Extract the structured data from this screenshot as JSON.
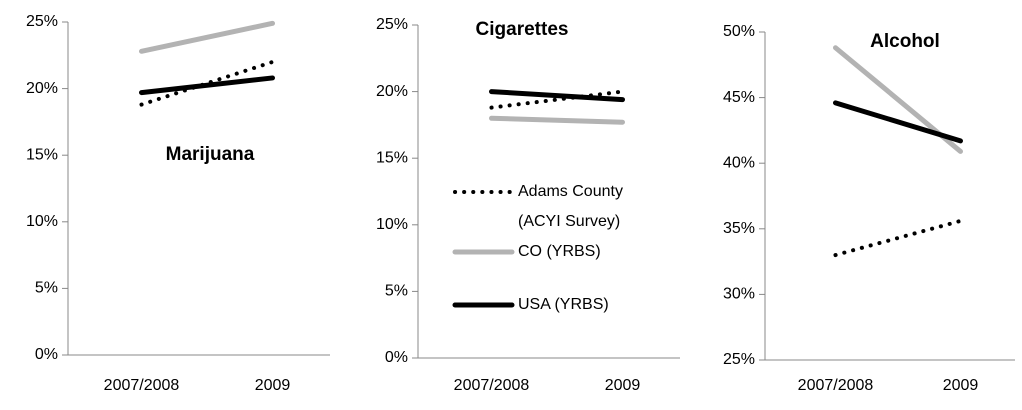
{
  "chart_data": [
    {
      "type": "line",
      "title": "Marijuana",
      "categories": [
        "2007/2008",
        "2009"
      ],
      "ylim": [
        0,
        25
      ],
      "yticks": [
        {
          "value": 0,
          "label": "0%"
        },
        {
          "value": 5,
          "label": "5%"
        },
        {
          "value": 10,
          "label": "10%"
        },
        {
          "value": 15,
          "label": "15%"
        },
        {
          "value": 20,
          "label": "20%"
        },
        {
          "value": 25,
          "label": "25%"
        }
      ],
      "series": [
        {
          "color": "#b3b3b3",
          "dash": "solid",
          "values": [
            22.8,
            24.9
          ]
        },
        {
          "color": "#000000",
          "dash": "solid",
          "values": [
            19.7,
            20.8
          ]
        },
        {
          "color": "#000000",
          "dash": "dotted",
          "values": [
            18.8,
            22.0
          ]
        }
      ]
    },
    {
      "type": "line",
      "title": "Cigarettes",
      "categories": [
        "2007/2008",
        "2009"
      ],
      "ylim": [
        0,
        25
      ],
      "yticks": [
        {
          "value": 0,
          "label": "0%"
        },
        {
          "value": 5,
          "label": "5%"
        },
        {
          "value": 10,
          "label": "10%"
        },
        {
          "value": 15,
          "label": "15%"
        },
        {
          "value": 20,
          "label": "20%"
        },
        {
          "value": 25,
          "label": "25%"
        }
      ],
      "legend": true,
      "series": [
        {
          "name": "Adams County (ACYI Survey)",
          "color": "#000000",
          "dash": "dotted",
          "values": [
            18.8,
            20.0
          ]
        },
        {
          "name": "CO (YRBS)",
          "color": "#b3b3b3",
          "dash": "solid",
          "values": [
            18.0,
            17.7
          ]
        },
        {
          "name": "USA (YRBS)",
          "color": "#000000",
          "dash": "solid",
          "values": [
            20.0,
            19.4
          ]
        }
      ]
    },
    {
      "type": "line",
      "title": "Alcohol",
      "categories": [
        "2007/2008",
        "2009"
      ],
      "ylim": [
        25,
        50
      ],
      "yticks": [
        {
          "value": 25,
          "label": "25%"
        },
        {
          "value": 30,
          "label": "30%"
        },
        {
          "value": 35,
          "label": "35%"
        },
        {
          "value": 40,
          "label": "40%"
        },
        {
          "value": 45,
          "label": "45%"
        },
        {
          "value": 50,
          "label": "50%"
        }
      ],
      "series": [
        {
          "color": "#b3b3b3",
          "dash": "solid",
          "values": [
            48.8,
            40.9
          ]
        },
        {
          "color": "#000000",
          "dash": "solid",
          "values": [
            44.6,
            41.7
          ]
        },
        {
          "color": "#000000",
          "dash": "dotted",
          "values": [
            33.0,
            35.6
          ]
        }
      ]
    }
  ]
}
